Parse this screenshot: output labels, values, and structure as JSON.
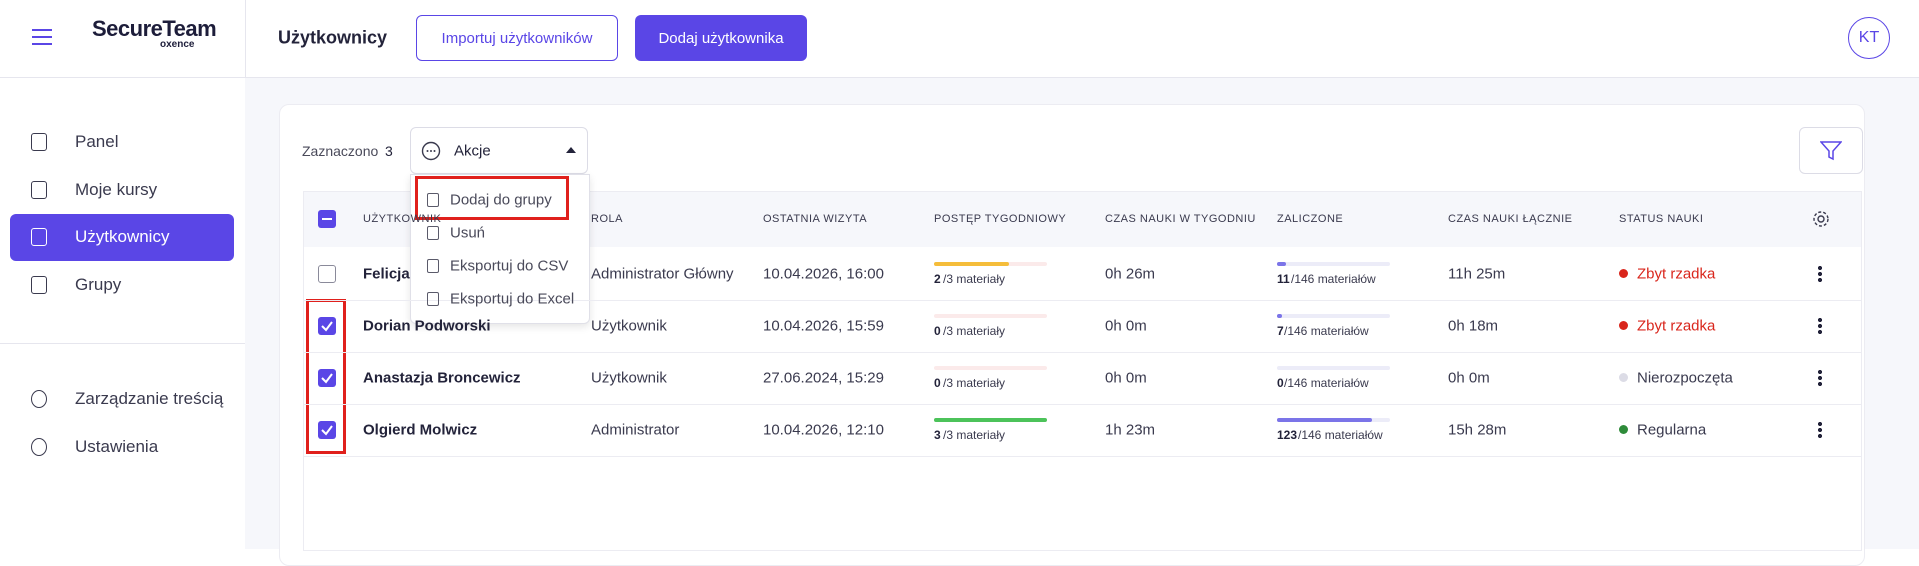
{
  "brand": {
    "name": "SecureTeam",
    "sub": "oxence"
  },
  "header": {
    "title": "Użytkownicy",
    "import_button": "Importuj użytkowników",
    "add_button": "Dodaj użytkownika",
    "avatar": "KT"
  },
  "sidebar": {
    "nav": [
      "Panel",
      "Moje kursy",
      "Użytkownicy",
      "Grupy"
    ],
    "nav2": [
      "Zarządzanie treścią",
      "Ustawienia"
    ]
  },
  "toolbar": {
    "selected_label": "Zaznaczono",
    "selected_count": "3",
    "actions": "Akcje"
  },
  "menu": [
    "Dodaj do grupy",
    "Usuń",
    "Eksportuj do CSV",
    "Eksportuj do Excel"
  ],
  "table": {
    "columns": [
      "UŻYTKOWNIK",
      "ROLA",
      "OSTATNIA WIZYTA",
      "POSTĘP TYGODNIOWY",
      "CZAS NAUKI W TYGODNIU",
      "ZALICZONE",
      "CZAS NAUKI ŁĄCZNIE",
      "STATUS NAUKI"
    ],
    "weekly_max": 3,
    "completed_max": 146,
    "rows": [
      {
        "checked": false,
        "name": "Felicja",
        "role": "Administrator Główny",
        "last_visit": "10.04.2026, 16:00",
        "weekly": 2,
        "weekly_label": "/3 materiały",
        "weekly_color": "#f5bd3a",
        "time_week": "0h 26m",
        "completed": 11,
        "completed_label": "/146 materiałów",
        "time_total": "11h 25m",
        "status": "Zbyt rzadka",
        "status_color": "#d9261c"
      },
      {
        "checked": true,
        "name": "Dorian Podworski",
        "role": "Użytkownik",
        "last_visit": "10.04.2026, 15:59",
        "weekly": 0,
        "weekly_label": "/3 materiały",
        "weekly_color": "#e8504a",
        "time_week": "0h 0m",
        "completed": 7,
        "completed_label": "/146 materiałów",
        "time_total": "0h 18m",
        "status": "Zbyt rzadka",
        "status_color": "#d9261c"
      },
      {
        "checked": true,
        "name": "Anastazja Broncewicz",
        "role": "Użytkownik",
        "last_visit": "27.06.2024, 15:29",
        "weekly": 0,
        "weekly_label": "/3 materiały",
        "weekly_color": "#e8504a",
        "time_week": "0h 0m",
        "completed": 0,
        "completed_label": "/146 materiałów",
        "time_total": "0h 0m",
        "status": "Nierozpoczęta",
        "status_color": "#dcdce6"
      },
      {
        "checked": true,
        "name": "Olgierd Molwicz",
        "role": "Administrator",
        "last_visit": "10.04.2026, 12:10",
        "weekly": 3,
        "weekly_label": "/3 materiały",
        "weekly_color": "#4cc35a",
        "time_week": "1h 23m",
        "completed": 123,
        "completed_label": "/146 materiałów",
        "time_total": "15h 28m",
        "status": "Regularna",
        "status_color": "#2e8b3a"
      }
    ]
  }
}
